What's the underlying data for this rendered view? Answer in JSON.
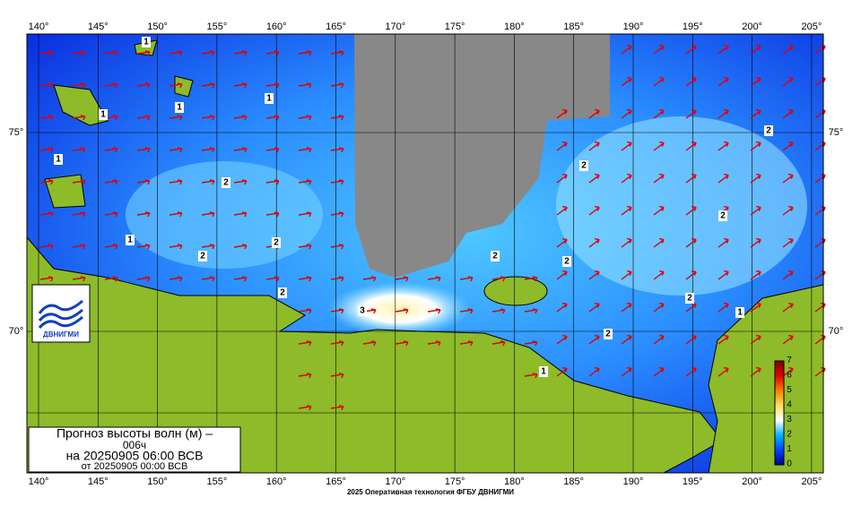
{
  "map": {
    "lon_labels": [
      "140°",
      "145°",
      "150°",
      "155°",
      "160°",
      "165°",
      "170°",
      "175°",
      "180°",
      "185°",
      "190°",
      "195°",
      "200°",
      "205°"
    ],
    "lat_labels": [
      "75°",
      "70°"
    ],
    "contour_labels": [
      "1",
      "1",
      "1",
      "1",
      "1",
      "1",
      "2",
      "2",
      "2",
      "2",
      "2",
      "2",
      "2",
      "2",
      "2",
      "2",
      "2",
      "3",
      "1",
      "1"
    ],
    "legend": {
      "title": "Прогноз высоты волн (м) –",
      "lead": "006ч",
      "date": "на 20250905 06:00 ВСВ",
      "issued": "от 20250905 00:00 ВСВ"
    },
    "colorbar_ticks": [
      "0",
      "1",
      "2",
      "3",
      "4",
      "5",
      "6",
      "7"
    ],
    "logo": "ДВНИГМИ",
    "footer": "2025 Оперативная технология ФГБУ ДВНИГМИ"
  }
}
